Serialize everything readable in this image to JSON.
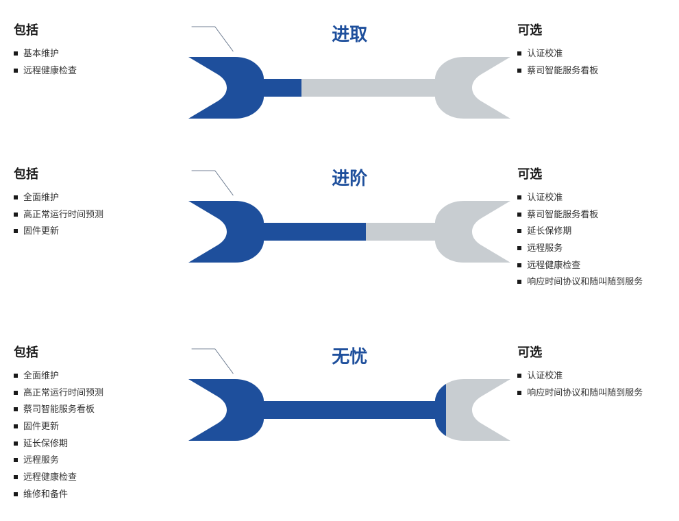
{
  "labels": {
    "included": "包括",
    "optional": "可选"
  },
  "colors": {
    "primary": "#1e4f9c",
    "muted": "#c8cdd1",
    "title": "#1e4f9c",
    "text": "#333333",
    "heading": "#1a1a1a",
    "bullet": "#1a1a1a",
    "callout": "#6b7a8f"
  },
  "typography": {
    "section_title_fontsize": 18,
    "tier_title_fontsize": 26,
    "item_fontsize": 13
  },
  "tiers": [
    {
      "key": "t1",
      "title": "进取",
      "fill_ratio": 0.35,
      "included": [
        "基本维护",
        "远程健康检查"
      ],
      "optional": [
        "认证校准",
        "蔡司智能服务看板"
      ]
    },
    {
      "key": "t2",
      "title": "进阶",
      "fill_ratio": 0.55,
      "included": [
        "全面维护",
        "高正常运行时间预测",
        "固件更新"
      ],
      "optional": [
        "认证校准",
        "蔡司智能服务看板",
        "延长保修期",
        "远程服务",
        "远程健康检查",
        "响应时间协议和随叫随到服务"
      ]
    },
    {
      "key": "t3",
      "title": "无忧",
      "fill_ratio": 0.8,
      "included": [
        "全面维护",
        "高正常运行时间预测",
        "蔡司智能服务看板",
        "固件更新",
        "延长保修期",
        "远程服务",
        "远程健康检查",
        "维修和备件"
      ],
      "optional": [
        "认证校准",
        "响应时间协议和随叫随到服务"
      ]
    }
  ],
  "layout": {
    "tier_heights": [
      210,
      260,
      260
    ]
  }
}
